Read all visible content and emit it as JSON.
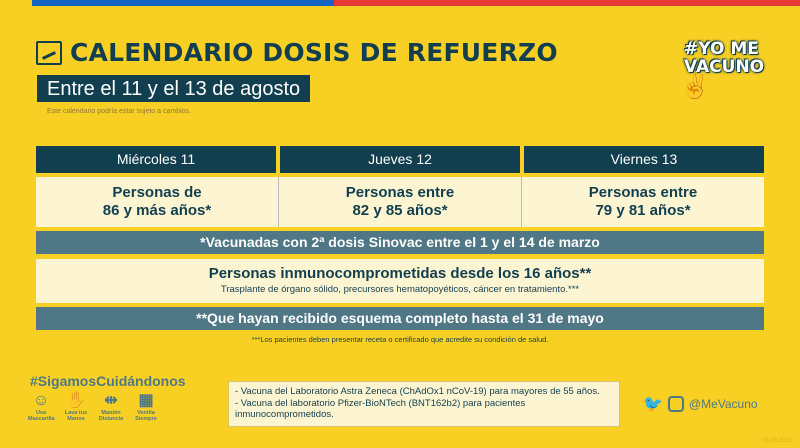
{
  "header": {
    "title": "CALENDARIO DOSIS DE REFUERZO",
    "subtitle": "Entre el 11 y el 13 de agosto",
    "disclaimer": "Este calendario podría estar sujeto a cambios.",
    "logo": "#YO ME VACUNO"
  },
  "days": [
    {
      "label": "Miércoles 11",
      "line1": "Personas de",
      "line2": "86 y más años*"
    },
    {
      "label": "Jueves 12",
      "line1": "Personas entre",
      "line2": "82 y 85 años*"
    },
    {
      "label": "Viernes 13",
      "line1": "Personas entre",
      "line2": "79 y 81 años*"
    }
  ],
  "band1": "*Vacunadas con 2ª dosis Sinovac entre el 1 y el 14 de marzo",
  "immuno": {
    "title": "Personas inmunocomprometidas desde los 16 años**",
    "detail": "Trasplante de órgano sólido, precursores hematopoyéticos, cáncer en tratamiento.***"
  },
  "band2": "**Que hayan recibido esquema completo hasta el 31 de mayo",
  "footnote": "***Los pacientes deben presentar receta o certificado que acredite su condición de salud.",
  "footer": {
    "hashtag": "#SigamosCuidándonos",
    "care": [
      {
        "icon": "mask-icon",
        "l1": "Usa",
        "l2": "Mascarilla"
      },
      {
        "icon": "hands-icon",
        "l1": "Lava tus",
        "l2": "Manos"
      },
      {
        "icon": "distance-icon",
        "l1": "Mantén",
        "l2": "Distancia"
      },
      {
        "icon": "window-icon",
        "l1": "Ventila",
        "l2": "Siempre"
      }
    ],
    "vaccines": [
      "- Vacuna del Laboratorio Astra Zeneca (ChAdOx1 nCoV-19) para mayores de 55 años.",
      "- Vacuna del laboratorio Pfizer-BioNTech (BNT162b2) para pacientes inmunocomprometidos."
    ],
    "social": "@MeVacuno",
    "date": "05.08.2021"
  },
  "colors": {
    "yellow": "#f8d024",
    "navy": "#123f4f",
    "gray": "#4f7786",
    "cream": "#fdf4d2",
    "blue": "#1565c0",
    "red": "#e53935"
  }
}
